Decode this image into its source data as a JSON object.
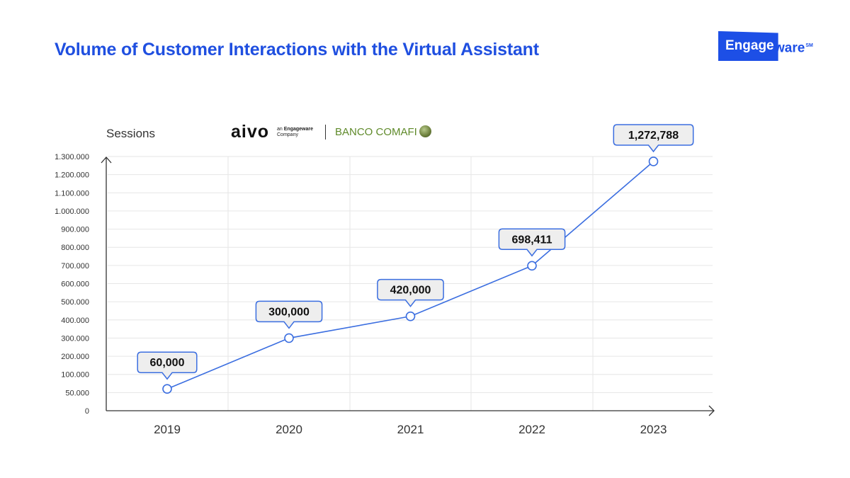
{
  "header": {
    "title": "Volume of Customer Interactions with the Virtual Assistant",
    "brand_logo_text": "Engageware"
  },
  "partners": {
    "aivo_name": "aivo",
    "aivo_tagline_prefix": "an",
    "aivo_tagline_brand": "Engageware",
    "aivo_tagline_suffix": "Company",
    "bank_name": "BANCO COMAFI"
  },
  "colors": {
    "title": "#1f4fe0",
    "brand": "#1d4fe6",
    "line": "#3b6ee0",
    "grid": "#e6e6e6",
    "callout_bg": "#eeeeee",
    "callout_border": "#3b6ee0",
    "bank_text": "#5f8a2a"
  },
  "chart_data": {
    "type": "line",
    "title": "Volume of Customer Interactions with the Virtual Assistant",
    "ylabel": "Sessions",
    "xlabel": "",
    "categories": [
      "2019",
      "2020",
      "2021",
      "2022",
      "2023"
    ],
    "series": [
      {
        "name": "Sessions",
        "values": [
          60000,
          300000,
          420000,
          698411,
          1272788
        ],
        "value_labels": [
          "60,000",
          "300,000",
          "420,000",
          "698,411",
          "1,272,788"
        ]
      }
    ],
    "yticks": [
      {
        "value": 0,
        "label": "0"
      },
      {
        "value": 50000,
        "label": "50.000"
      },
      {
        "value": 100000,
        "label": "100.000"
      },
      {
        "value": 200000,
        "label": "200.000"
      },
      {
        "value": 300000,
        "label": "300.000"
      },
      {
        "value": 400000,
        "label": "400.000"
      },
      {
        "value": 500000,
        "label": "500.000"
      },
      {
        "value": 600000,
        "label": "600.000"
      },
      {
        "value": 700000,
        "label": "700.000"
      },
      {
        "value": 800000,
        "label": "800.000"
      },
      {
        "value": 900000,
        "label": "900.000"
      },
      {
        "value": 1000000,
        "label": "1.000.000"
      },
      {
        "value": 1100000,
        "label": "1.100.000"
      },
      {
        "value": 1200000,
        "label": "1.200.000"
      },
      {
        "value": 1300000,
        "label": "1.300.000"
      }
    ],
    "ylim": [
      0,
      1300000
    ],
    "grid": true,
    "legend": "none"
  }
}
